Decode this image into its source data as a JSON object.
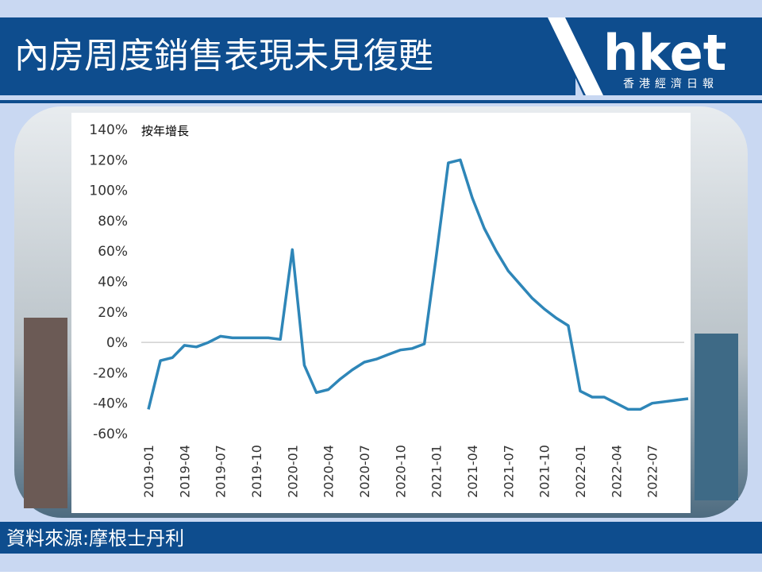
{
  "header": {
    "title": "內房周度銷售表現未見復甦",
    "logo": "hket",
    "logo_subtitle": "香港經濟日報"
  },
  "footer": {
    "source": "資料來源:摩根士丹利"
  },
  "chart_data": {
    "type": "line",
    "y_label": "按年增長",
    "color": "#2e86b8",
    "x": [
      "2019-01",
      "2019-02",
      "2019-03",
      "2019-04",
      "2019-05",
      "2019-06",
      "2019-07",
      "2019-08",
      "2019-09",
      "2019-10",
      "2019-11",
      "2019-12",
      "2020-01",
      "2020-02",
      "2020-03",
      "2020-04",
      "2020-05",
      "2020-06",
      "2020-07",
      "2020-08",
      "2020-09",
      "2020-10",
      "2020-11",
      "2020-12",
      "2021-01",
      "2021-02",
      "2021-03",
      "2021-04",
      "2021-05",
      "2021-06",
      "2021-07",
      "2021-08",
      "2021-09",
      "2021-10",
      "2021-11",
      "2021-12",
      "2022-01",
      "2022-02",
      "2022-03",
      "2022-04",
      "2022-05",
      "2022-06",
      "2022-07",
      "2022-08",
      "2022-09",
      "2022-10"
    ],
    "values": [
      -44,
      -12,
      -10,
      -2,
      -3,
      0,
      4,
      3,
      3,
      3,
      3,
      2,
      61,
      -15,
      -33,
      -31,
      -24,
      -18,
      -13,
      -11,
      -8,
      -5,
      -4,
      -1,
      57,
      118,
      120,
      95,
      75,
      60,
      47,
      38,
      29,
      22,
      16,
      11,
      -32,
      -36,
      -36,
      -40,
      -44,
      -44,
      -40,
      -39,
      -38,
      -37
    ],
    "xlim": [
      "2019-01",
      "2022-10"
    ],
    "xticks": [
      "2019-01",
      "2019-04",
      "2019-07",
      "2019-10",
      "2020-01",
      "2020-04",
      "2020-07",
      "2020-10",
      "2021-01",
      "2021-04",
      "2021-07",
      "2021-10",
      "2022-01",
      "2022-04",
      "2022-07"
    ],
    "ylim": [
      -60,
      140
    ],
    "yticks": [
      {
        "value": -60,
        "label": "-60%"
      },
      {
        "value": -40,
        "label": "-40%"
      },
      {
        "value": -20,
        "label": "-20%"
      },
      {
        "value": 0,
        "label": "0%"
      },
      {
        "value": 20,
        "label": "20%"
      },
      {
        "value": 40,
        "label": "40%"
      },
      {
        "value": 60,
        "label": "60%"
      },
      {
        "value": 80,
        "label": "80%"
      },
      {
        "value": 100,
        "label": "100%"
      },
      {
        "value": 120,
        "label": "120%"
      },
      {
        "value": 140,
        "label": "140%"
      }
    ],
    "zero_line": true
  }
}
